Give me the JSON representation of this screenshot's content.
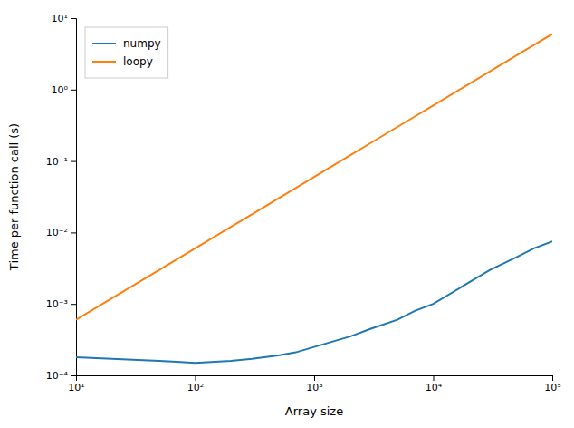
{
  "chart_data": {
    "type": "line",
    "xlabel": "Array size",
    "ylabel": "Time per function call (s)",
    "x": [
      10,
      20,
      30,
      50,
      70,
      100,
      200,
      300,
      500,
      700,
      1000,
      2000,
      3000,
      5000,
      7000,
      10000,
      20000,
      30000,
      50000,
      70000,
      100000
    ],
    "series": [
      {
        "name": "numpy",
        "color": "#1f77b4",
        "values": [
          0.00018,
          0.00017,
          0.000165,
          0.00016,
          0.000155,
          0.00015,
          0.00016,
          0.00017,
          0.00019,
          0.00021,
          0.00025,
          0.00035,
          0.00045,
          0.0006,
          0.0008,
          0.001,
          0.002,
          0.003,
          0.0045,
          0.006,
          0.0075
        ]
      },
      {
        "name": "loopy",
        "color": "#ff7f0e",
        "values": [
          0.0006,
          0.0012,
          0.0018,
          0.003,
          0.0042,
          0.006,
          0.012,
          0.018,
          0.03,
          0.042,
          0.06,
          0.12,
          0.18,
          0.3,
          0.42,
          0.6,
          1.2,
          1.8,
          3.0,
          4.2,
          6.0
        ]
      }
    ],
    "xlim": [
      10,
      100000
    ],
    "ylim": [
      0.0001,
      10
    ],
    "xticks": [
      {
        "value": 10,
        "label": "10¹"
      },
      {
        "value": 100,
        "label": "10²"
      },
      {
        "value": 1000,
        "label": "10³"
      },
      {
        "value": 10000,
        "label": "10⁴"
      },
      {
        "value": 100000,
        "label": "10⁵"
      }
    ],
    "yticks": [
      {
        "value": 0.0001,
        "label": "10⁻⁴"
      },
      {
        "value": 0.001,
        "label": "10⁻³"
      },
      {
        "value": 0.01,
        "label": "10⁻²"
      },
      {
        "value": 0.1,
        "label": "10⁻¹"
      },
      {
        "value": 1,
        "label": "10⁰"
      },
      {
        "value": 10,
        "label": "10¹"
      }
    ],
    "log": true,
    "grid": false,
    "legend": "upper left"
  }
}
